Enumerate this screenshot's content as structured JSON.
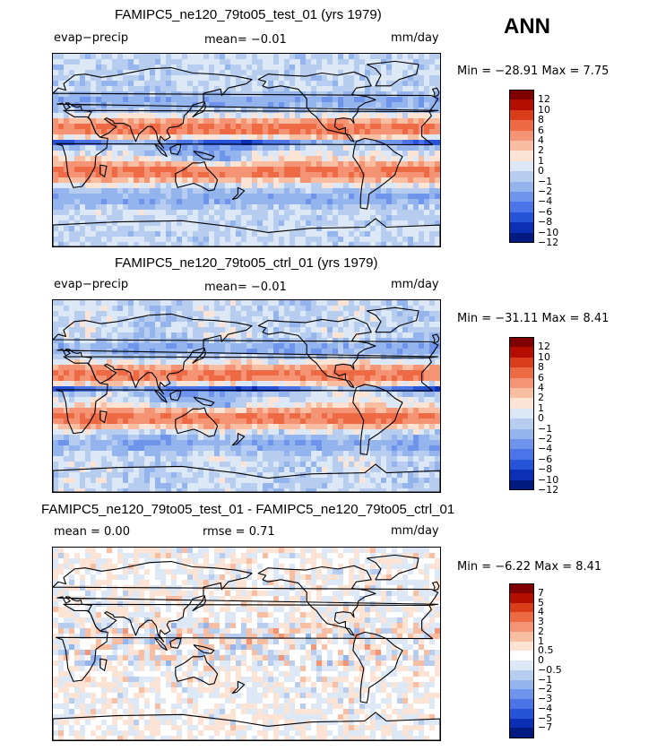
{
  "season": "ANN",
  "panels": [
    {
      "title": "FAMIPC5_ne120_79to05_test_01 (yrs 1979)",
      "left_label": "evap−precip",
      "center_label": "mean=  −0.01",
      "units": "mm/day",
      "minmax": "Min = −28.91  Max =   7.75",
      "palette": [
        "#800000",
        "#b50e00",
        "#d93d1a",
        "#ee6a45",
        "#f49475",
        "#f9bea2",
        "#fde3d4",
        "#dde8f6",
        "#b7cdf0",
        "#94b4ee",
        "#6e95eb",
        "#4a74e8",
        "#2653d7",
        "#0b30b5",
        "#001a80"
      ],
      "levels": [
        "12",
        "10",
        "8",
        "6",
        "4",
        "2",
        "1",
        "0",
        "−1",
        "−2",
        "−4",
        "−6",
        "−8",
        "−10",
        "−12"
      ]
    },
    {
      "title": "FAMIPC5_ne120_79to05_ctrl_01 (yrs 1979)",
      "left_label": "evap−precip",
      "center_label": "mean=  −0.01",
      "units": "mm/day",
      "minmax": "Min = −31.11  Max =   8.41",
      "palette": [
        "#800000",
        "#b50e00",
        "#d93d1a",
        "#ee6a45",
        "#f49475",
        "#f9bea2",
        "#fde3d4",
        "#dde8f6",
        "#b7cdf0",
        "#94b4ee",
        "#6e95eb",
        "#4a74e8",
        "#2653d7",
        "#0b30b5",
        "#001a80"
      ],
      "levels": [
        "12",
        "10",
        "8",
        "6",
        "4",
        "2",
        "1",
        "0",
        "−1",
        "−2",
        "−4",
        "−6",
        "−8",
        "−10",
        "−12"
      ]
    },
    {
      "title": "FAMIPC5_ne120_79to05_test_01 - FAMIPC5_ne120_79to05_ctrl_01",
      "left_label": "mean =   0.00",
      "center_label": "rmse =   0.71",
      "units": "mm/day",
      "minmax": "Min =  −6.22  Max =   8.41",
      "palette": [
        "#800000",
        "#b50e00",
        "#d93d1a",
        "#ee6a45",
        "#f49475",
        "#f9bea2",
        "#fde3d4",
        "#ffffff",
        "#dde8f6",
        "#b7cdf0",
        "#94b4ee",
        "#6e95eb",
        "#4a74e8",
        "#2653d7",
        "#0b30b5",
        "#001a80"
      ],
      "levels": [
        "7",
        "5",
        "4",
        "3",
        "2",
        "1",
        "0.5",
        "0",
        "−0.5",
        "−1",
        "−2",
        "−3",
        "−4",
        "−5",
        "−7"
      ]
    }
  ],
  "chart_data": [
    {
      "type": "heatmap",
      "title": "FAMIPC5_ne120_79to05_test_01 (yrs 1979)",
      "variable": "evap−precip",
      "units": "mm/day",
      "mean": -0.01,
      "min": -28.91,
      "max": 7.75,
      "contour_levels": [
        -12,
        -10,
        -8,
        -6,
        -4,
        -2,
        -1,
        0,
        1,
        2,
        4,
        6,
        8,
        10,
        12
      ]
    },
    {
      "type": "heatmap",
      "title": "FAMIPC5_ne120_79to05_ctrl_01 (yrs 1979)",
      "variable": "evap−precip",
      "units": "mm/day",
      "mean": -0.01,
      "min": -31.11,
      "max": 8.41,
      "contour_levels": [
        -12,
        -10,
        -8,
        -6,
        -4,
        -2,
        -1,
        0,
        1,
        2,
        4,
        6,
        8,
        10,
        12
      ]
    },
    {
      "type": "heatmap",
      "title": "FAMIPC5_ne120_79to05_test_01 - FAMIPC5_ne120_79to05_ctrl_01",
      "units": "mm/day",
      "mean": 0.0,
      "rmse": 0.71,
      "min": -6.22,
      "max": 8.41,
      "contour_levels": [
        -7,
        -5,
        -4,
        -3,
        -2,
        -1,
        -0.5,
        0,
        0.5,
        1,
        2,
        3,
        4,
        5,
        7
      ]
    }
  ]
}
